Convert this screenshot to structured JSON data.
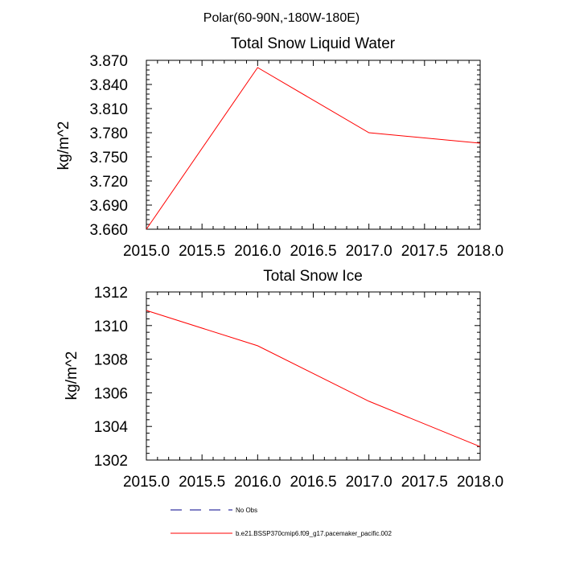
{
  "figure_title": "Polar(60-90N,-180W-180E)",
  "chart_data": [
    {
      "type": "line",
      "title": "Total Snow Liquid Water",
      "xlabel": "",
      "ylabel": "kg/m^2",
      "xlim": [
        2015.0,
        2018.0
      ],
      "ylim": [
        3.66,
        3.87
      ],
      "x_ticks": [
        "2015.0",
        "2015.5",
        "2016.0",
        "2016.5",
        "2017.0",
        "2017.5",
        "2018.0"
      ],
      "y_ticks": [
        "3.660",
        "3.690",
        "3.720",
        "3.750",
        "3.780",
        "3.810",
        "3.840",
        "3.870"
      ],
      "series": [
        {
          "name": "b.e21.BSSP370cmip6.f09_g17.pacemaker_pacific.002",
          "color": "#ff0000",
          "x": [
            2015.0,
            2016.0,
            2017.0,
            2018.0
          ],
          "y": [
            3.66,
            3.861,
            3.78,
            3.767
          ]
        }
      ]
    },
    {
      "type": "line",
      "title": "Total Snow Ice",
      "xlabel": "",
      "ylabel": "kg/m^2",
      "xlim": [
        2015.0,
        2018.0
      ],
      "ylim": [
        1302,
        1312
      ],
      "x_ticks": [
        "2015.0",
        "2015.5",
        "2016.0",
        "2016.5",
        "2017.0",
        "2017.5",
        "2018.0"
      ],
      "y_ticks": [
        "1302",
        "1304",
        "1306",
        "1308",
        "1310",
        "1312"
      ],
      "series": [
        {
          "name": "b.e21.BSSP370cmip6.f09_g17.pacemaker_pacific.002",
          "color": "#ff0000",
          "x": [
            2015.0,
            2016.0,
            2017.0,
            2018.0
          ],
          "y": [
            1310.9,
            1308.8,
            1305.5,
            1302.8
          ]
        }
      ]
    }
  ],
  "legend": {
    "entries": [
      {
        "label": "No Obs",
        "color": "#00008b",
        "style": "dashed"
      },
      {
        "label": "b.e21.BSSP370cmip6.f09_g17.pacemaker_pacific.002",
        "color": "#ff0000",
        "style": "solid"
      }
    ]
  }
}
